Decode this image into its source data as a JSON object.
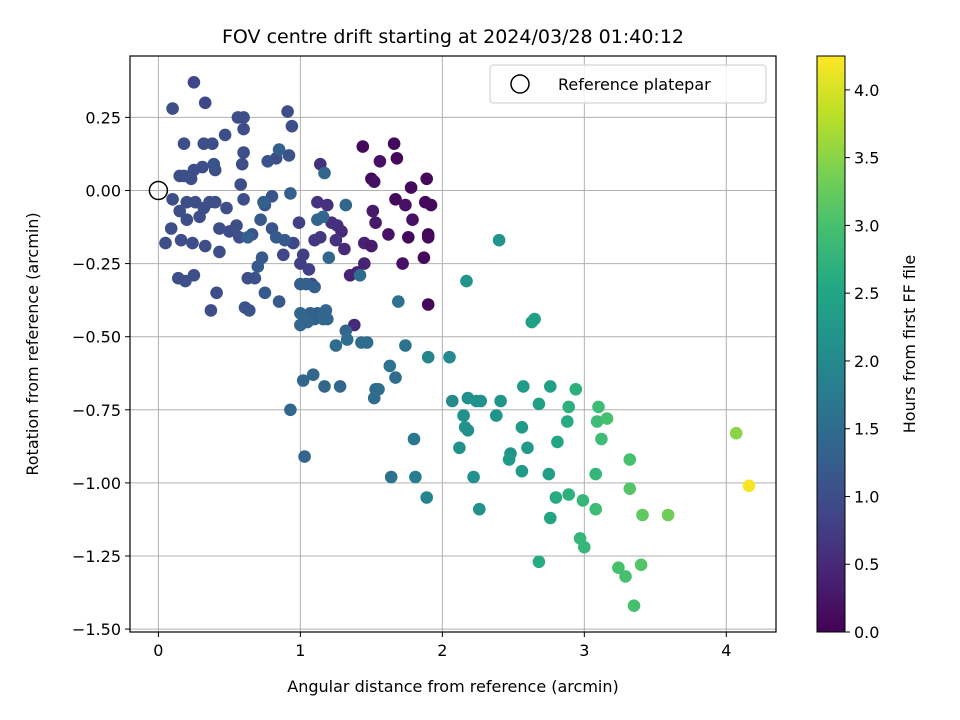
{
  "chart_data": {
    "type": "scatter",
    "title": "FOV centre drift starting at 2024/03/28 01:40:12",
    "xlabel": "Angular distance from reference (arcmin)",
    "ylabel": "Rotation from reference (arcmin)",
    "xlim": [
      -0.2,
      4.35
    ],
    "ylim": [
      -1.51,
      0.46
    ],
    "x_ticks": [
      0,
      1,
      2,
      3,
      4
    ],
    "x_tick_labels": [
      "0",
      "1",
      "2",
      "3",
      "4"
    ],
    "y_ticks": [
      0.25,
      0,
      -0.25,
      -0.5,
      -0.75,
      -1.0,
      -1.25,
      -1.5
    ],
    "y_tick_labels": [
      "0.25",
      "0.00",
      "−0.25",
      "−0.50",
      "−0.75",
      "−1.00",
      "−1.25",
      "−1.50"
    ],
    "grid": true,
    "legend": {
      "placement": "top-right",
      "label": "Reference platepar"
    },
    "reference_point": {
      "x": 0,
      "y": 0
    },
    "colorbar": {
      "label": "Hours from first FF file",
      "range": [
        0,
        4.25
      ],
      "ticks": [
        0,
        0.5,
        1,
        1.5,
        2,
        2.5,
        3,
        3.5,
        4
      ],
      "tick_labels": [
        "0.0",
        "0.5",
        "1.0",
        "1.5",
        "2.0",
        "2.5",
        "3.0",
        "3.5",
        "4.0"
      ],
      "colormap": "viridis"
    },
    "points": [
      {
        "x": 1.44,
        "y": 0.15,
        "t": 0.1
      },
      {
        "x": 1.66,
        "y": 0.16,
        "t": 0.1
      },
      {
        "x": 1.68,
        "y": 0.11,
        "t": 0.1
      },
      {
        "x": 1.56,
        "y": 0.1,
        "t": 0.2
      },
      {
        "x": 1.5,
        "y": 0.04,
        "t": 0.1
      },
      {
        "x": 1.52,
        "y": 0.03,
        "t": 0.2
      },
      {
        "x": 1.78,
        "y": 0.01,
        "t": 0.1
      },
      {
        "x": 1.89,
        "y": 0.04,
        "t": 0.1
      },
      {
        "x": 1.67,
        "y": -0.03,
        "t": 0.1
      },
      {
        "x": 1.74,
        "y": -0.05,
        "t": 0.2
      },
      {
        "x": 1.88,
        "y": -0.04,
        "t": 0.1
      },
      {
        "x": 1.92,
        "y": -0.05,
        "t": 0.1
      },
      {
        "x": 1.79,
        "y": -0.1,
        "t": 0.2
      },
      {
        "x": 1.62,
        "y": -0.15,
        "t": 0.2
      },
      {
        "x": 1.76,
        "y": -0.16,
        "t": 0.1
      },
      {
        "x": 1.9,
        "y": -0.15,
        "t": 0.1
      },
      {
        "x": 1.9,
        "y": -0.16,
        "t": 0.1
      },
      {
        "x": 1.53,
        "y": -0.11,
        "t": 0.3
      },
      {
        "x": 1.51,
        "y": -0.07,
        "t": 0.3
      },
      {
        "x": 1.45,
        "y": -0.18,
        "t": 0.4
      },
      {
        "x": 1.5,
        "y": -0.19,
        "t": 0.3
      },
      {
        "x": 1.72,
        "y": -0.25,
        "t": 0.2
      },
      {
        "x": 1.87,
        "y": -0.23,
        "t": 0.1
      },
      {
        "x": 1.9,
        "y": -0.39,
        "t": 0.1
      },
      {
        "x": 1.45,
        "y": -0.25,
        "t": 0.4
      },
      {
        "x": 1.35,
        "y": -0.29,
        "t": 0.4
      },
      {
        "x": 1.4,
        "y": -0.28,
        "t": 0.4
      },
      {
        "x": 1.26,
        "y": -0.12,
        "t": 0.6
      },
      {
        "x": 1.29,
        "y": -0.14,
        "t": 0.5
      },
      {
        "x": 1.25,
        "y": -0.17,
        "t": 0.6
      },
      {
        "x": 1.31,
        "y": -0.2,
        "t": 0.5
      },
      {
        "x": 1.14,
        "y": -0.16,
        "t": 0.7
      },
      {
        "x": 1.1,
        "y": -0.17,
        "t": 0.7
      },
      {
        "x": 1.12,
        "y": -0.04,
        "t": 0.6
      },
      {
        "x": 1.14,
        "y": 0.09,
        "t": 0.6
      },
      {
        "x": 1.19,
        "y": -0.05,
        "t": 0.6
      },
      {
        "x": 1.22,
        "y": -0.11,
        "t": 0.6
      },
      {
        "x": 1.02,
        "y": -0.22,
        "t": 0.8
      },
      {
        "x": 1.0,
        "y": -0.25,
        "t": 0.8
      },
      {
        "x": 1.06,
        "y": -0.27,
        "t": 0.8
      },
      {
        "x": 1.08,
        "y": -0.32,
        "t": 0.9
      },
      {
        "x": 0.99,
        "y": -0.11,
        "t": 0.8
      },
      {
        "x": 0.95,
        "y": -0.18,
        "t": 0.9
      },
      {
        "x": 0.88,
        "y": -0.22,
        "t": 0.9
      },
      {
        "x": 1.38,
        "y": -0.46,
        "t": 0.5
      },
      {
        "x": 0.91,
        "y": 0.27,
        "t": 1.0
      },
      {
        "x": 0.94,
        "y": 0.22,
        "t": 1.0
      },
      {
        "x": 0.92,
        "y": 0.12,
        "t": 1.1
      },
      {
        "x": 0.83,
        "y": 0.11,
        "t": 1.0
      },
      {
        "x": 0.77,
        "y": 0.1,
        "t": 1.1
      },
      {
        "x": 0.8,
        "y": -0.02,
        "t": 1.1
      },
      {
        "x": 0.75,
        "y": -0.05,
        "t": 1.1
      },
      {
        "x": 0.8,
        "y": -0.13,
        "t": 1.1
      },
      {
        "x": 0.72,
        "y": -0.1,
        "t": 1.2
      },
      {
        "x": 0.59,
        "y": 0.09,
        "t": 1.0
      },
      {
        "x": 0.6,
        "y": 0.13,
        "t": 1.0
      },
      {
        "x": 0.6,
        "y": 0.21,
        "t": 1.0
      },
      {
        "x": 0.56,
        "y": 0.25,
        "t": 1.0
      },
      {
        "x": 0.6,
        "y": 0.25,
        "t": 1.0
      },
      {
        "x": 0.47,
        "y": 0.19,
        "t": 1.0
      },
      {
        "x": 0.38,
        "y": 0.16,
        "t": 1.0
      },
      {
        "x": 0.4,
        "y": 0.07,
        "t": 1.0
      },
      {
        "x": 0.39,
        "y": 0.09,
        "t": 1.1
      },
      {
        "x": 0.32,
        "y": 0.16,
        "t": 1.0
      },
      {
        "x": 0.25,
        "y": 0.37,
        "t": 0.9
      },
      {
        "x": 0.33,
        "y": 0.3,
        "t": 0.9
      },
      {
        "x": 0.1,
        "y": 0.28,
        "t": 1.0
      },
      {
        "x": 0.18,
        "y": 0.16,
        "t": 1.0
      },
      {
        "x": 0.18,
        "y": 0.05,
        "t": 1.0
      },
      {
        "x": 0.15,
        "y": 0.05,
        "t": 1.0
      },
      {
        "x": 0.25,
        "y": 0.07,
        "t": 1.0
      },
      {
        "x": 0.23,
        "y": 0.04,
        "t": 1.0
      },
      {
        "x": 0.31,
        "y": 0.08,
        "t": 1.0
      },
      {
        "x": 0.2,
        "y": -0.04,
        "t": 1.0
      },
      {
        "x": 0.26,
        "y": -0.04,
        "t": 1.0
      },
      {
        "x": 0.32,
        "y": -0.06,
        "t": 1.0
      },
      {
        "x": 0.36,
        "y": -0.04,
        "t": 1.0
      },
      {
        "x": 0.29,
        "y": -0.09,
        "t": 1.0
      },
      {
        "x": 0.2,
        "y": -0.1,
        "t": 1.0
      },
      {
        "x": 0.15,
        "y": -0.07,
        "t": 1.0
      },
      {
        "x": 0.1,
        "y": -0.03,
        "t": 1.0
      },
      {
        "x": 0.09,
        "y": -0.13,
        "t": 1.0
      },
      {
        "x": 0.05,
        "y": -0.18,
        "t": 1.0
      },
      {
        "x": 0.16,
        "y": -0.17,
        "t": 1.0
      },
      {
        "x": 0.24,
        "y": -0.18,
        "t": 1.0
      },
      {
        "x": 0.33,
        "y": -0.19,
        "t": 1.0
      },
      {
        "x": 0.43,
        "y": -0.13,
        "t": 1.0
      },
      {
        "x": 0.4,
        "y": -0.04,
        "t": 1.0
      },
      {
        "x": 0.48,
        "y": -0.06,
        "t": 1.0
      },
      {
        "x": 0.55,
        "y": -0.12,
        "t": 1.0
      },
      {
        "x": 0.57,
        "y": -0.16,
        "t": 1.0
      },
      {
        "x": 0.5,
        "y": -0.14,
        "t": 1.0
      },
      {
        "x": 0.6,
        "y": -0.03,
        "t": 1.0
      },
      {
        "x": 0.58,
        "y": 0.02,
        "t": 1.0
      },
      {
        "x": 0.66,
        "y": -0.15,
        "t": 1.1
      },
      {
        "x": 0.43,
        "y": -0.21,
        "t": 1.0
      },
      {
        "x": 0.25,
        "y": -0.29,
        "t": 1.0
      },
      {
        "x": 0.14,
        "y": -0.3,
        "t": 1.0
      },
      {
        "x": 0.19,
        "y": -0.31,
        "t": 1.0
      },
      {
        "x": 0.41,
        "y": -0.35,
        "t": 1.0
      },
      {
        "x": 0.37,
        "y": -0.41,
        "t": 1.0
      },
      {
        "x": 0.61,
        "y": -0.4,
        "t": 1.1
      },
      {
        "x": 0.64,
        "y": -0.41,
        "t": 1.1
      },
      {
        "x": 0.68,
        "y": -0.3,
        "t": 1.1
      },
      {
        "x": 0.7,
        "y": -0.26,
        "t": 1.2
      },
      {
        "x": 0.73,
        "y": -0.23,
        "t": 1.2
      },
      {
        "x": 0.63,
        "y": -0.3,
        "t": 1.0
      },
      {
        "x": 0.75,
        "y": -0.35,
        "t": 1.2
      },
      {
        "x": 0.85,
        "y": -0.38,
        "t": 1.2
      },
      {
        "x": 0.83,
        "y": -0.16,
        "t": 1.2
      },
      {
        "x": 0.89,
        "y": -0.17,
        "t": 1.2
      },
      {
        "x": 0.93,
        "y": -0.01,
        "t": 1.3
      },
      {
        "x": 0.85,
        "y": 0.14,
        "t": 1.3
      },
      {
        "x": 0.74,
        "y": -0.04,
        "t": 1.3
      },
      {
        "x": 0.63,
        "y": -0.16,
        "t": 1.3
      },
      {
        "x": 1.0,
        "y": -0.32,
        "t": 1.3
      },
      {
        "x": 1.04,
        "y": -0.32,
        "t": 1.3
      },
      {
        "x": 1.1,
        "y": -0.33,
        "t": 1.3
      },
      {
        "x": 1.07,
        "y": -0.42,
        "t": 1.3
      },
      {
        "x": 1.1,
        "y": -0.44,
        "t": 1.3
      },
      {
        "x": 1.12,
        "y": -0.42,
        "t": 1.3
      },
      {
        "x": 1.0,
        "y": -0.42,
        "t": 1.4
      },
      {
        "x": 1.0,
        "y": -0.46,
        "t": 1.4
      },
      {
        "x": 1.05,
        "y": -0.45,
        "t": 1.4
      },
      {
        "x": 1.16,
        "y": -0.44,
        "t": 1.4
      },
      {
        "x": 1.18,
        "y": -0.41,
        "t": 1.4
      },
      {
        "x": 1.19,
        "y": -0.44,
        "t": 1.4
      },
      {
        "x": 1.12,
        "y": -0.1,
        "t": 1.4
      },
      {
        "x": 1.16,
        "y": -0.09,
        "t": 1.4
      },
      {
        "x": 1.17,
        "y": 0.06,
        "t": 1.4
      },
      {
        "x": 1.32,
        "y": -0.05,
        "t": 1.4
      },
      {
        "x": 1.2,
        "y": -0.23,
        "t": 1.4
      },
      {
        "x": 1.32,
        "y": -0.48,
        "t": 1.4
      },
      {
        "x": 1.33,
        "y": -0.51,
        "t": 1.5
      },
      {
        "x": 1.25,
        "y": -0.53,
        "t": 1.5
      },
      {
        "x": 1.43,
        "y": -0.52,
        "t": 1.5
      },
      {
        "x": 1.47,
        "y": -0.52,
        "t": 1.5
      },
      {
        "x": 1.42,
        "y": -0.29,
        "t": 1.5
      },
      {
        "x": 1.69,
        "y": -0.38,
        "t": 1.6
      },
      {
        "x": 1.74,
        "y": -0.53,
        "t": 1.6
      },
      {
        "x": 1.63,
        "y": -0.6,
        "t": 1.6
      },
      {
        "x": 1.53,
        "y": -0.68,
        "t": 1.5
      },
      {
        "x": 1.55,
        "y": -0.68,
        "t": 1.5
      },
      {
        "x": 1.52,
        "y": -0.71,
        "t": 1.5
      },
      {
        "x": 1.67,
        "y": -0.64,
        "t": 1.5
      },
      {
        "x": 1.02,
        "y": -0.65,
        "t": 1.4
      },
      {
        "x": 1.09,
        "y": -0.63,
        "t": 1.4
      },
      {
        "x": 1.17,
        "y": -0.67,
        "t": 1.4
      },
      {
        "x": 1.28,
        "y": -0.67,
        "t": 1.4
      },
      {
        "x": 0.93,
        "y": -0.75,
        "t": 1.4
      },
      {
        "x": 1.03,
        "y": -0.91,
        "t": 1.4
      },
      {
        "x": 1.64,
        "y": -0.98,
        "t": 1.6
      },
      {
        "x": 1.8,
        "y": -0.85,
        "t": 1.7
      },
      {
        "x": 1.81,
        "y": -0.98,
        "t": 1.8
      },
      {
        "x": 1.89,
        "y": -1.05,
        "t": 1.9
      },
      {
        "x": 1.9,
        "y": -0.57,
        "t": 1.9
      },
      {
        "x": 2.05,
        "y": -0.57,
        "t": 2.0
      },
      {
        "x": 2.07,
        "y": -0.72,
        "t": 2.0
      },
      {
        "x": 2.18,
        "y": -0.71,
        "t": 2.1
      },
      {
        "x": 2.24,
        "y": -0.72,
        "t": 2.2
      },
      {
        "x": 2.27,
        "y": -0.72,
        "t": 2.1
      },
      {
        "x": 2.15,
        "y": -0.77,
        "t": 2.1
      },
      {
        "x": 2.16,
        "y": -0.81,
        "t": 2.2
      },
      {
        "x": 2.18,
        "y": -0.82,
        "t": 2.1
      },
      {
        "x": 2.12,
        "y": -0.88,
        "t": 2.1
      },
      {
        "x": 2.22,
        "y": -0.98,
        "t": 2.1
      },
      {
        "x": 2.26,
        "y": -1.09,
        "t": 2.1
      },
      {
        "x": 2.38,
        "y": -0.77,
        "t": 2.2
      },
      {
        "x": 2.41,
        "y": -0.72,
        "t": 2.2
      },
      {
        "x": 2.48,
        "y": -0.9,
        "t": 2.2
      },
      {
        "x": 2.47,
        "y": -0.92,
        "t": 2.3
      },
      {
        "x": 2.56,
        "y": -0.81,
        "t": 2.3
      },
      {
        "x": 2.56,
        "y": -0.96,
        "t": 2.3
      },
      {
        "x": 2.6,
        "y": -0.88,
        "t": 2.3
      },
      {
        "x": 2.57,
        "y": -0.67,
        "t": 2.3
      },
      {
        "x": 2.68,
        "y": -0.73,
        "t": 2.4
      },
      {
        "x": 2.76,
        "y": -0.67,
        "t": 2.4
      },
      {
        "x": 2.75,
        "y": -0.97,
        "t": 2.4
      },
      {
        "x": 2.8,
        "y": -1.05,
        "t": 2.6
      },
      {
        "x": 2.81,
        "y": -0.86,
        "t": 2.5
      },
      {
        "x": 2.76,
        "y": -1.12,
        "t": 2.5
      },
      {
        "x": 2.68,
        "y": -1.27,
        "t": 2.6
      },
      {
        "x": 2.88,
        "y": -0.79,
        "t": 2.6
      },
      {
        "x": 2.89,
        "y": -0.74,
        "t": 2.7
      },
      {
        "x": 2.89,
        "y": -1.04,
        "t": 2.7
      },
      {
        "x": 2.94,
        "y": -0.68,
        "t": 2.7
      },
      {
        "x": 2.99,
        "y": -1.06,
        "t": 2.8
      },
      {
        "x": 2.97,
        "y": -1.19,
        "t": 2.8
      },
      {
        "x": 3.0,
        "y": -1.22,
        "t": 2.8
      },
      {
        "x": 3.08,
        "y": -0.97,
        "t": 2.8
      },
      {
        "x": 3.08,
        "y": -1.09,
        "t": 2.9
      },
      {
        "x": 3.09,
        "y": -0.79,
        "t": 2.9
      },
      {
        "x": 3.1,
        "y": -0.74,
        "t": 2.9
      },
      {
        "x": 3.12,
        "y": -0.85,
        "t": 2.9
      },
      {
        "x": 3.16,
        "y": -0.78,
        "t": 3.0
      },
      {
        "x": 3.24,
        "y": -1.29,
        "t": 3.0
      },
      {
        "x": 3.29,
        "y": -1.32,
        "t": 3.0
      },
      {
        "x": 3.32,
        "y": -0.92,
        "t": 3.0
      },
      {
        "x": 3.32,
        "y": -1.02,
        "t": 3.1
      },
      {
        "x": 3.35,
        "y": -1.42,
        "t": 3.0
      },
      {
        "x": 3.4,
        "y": -1.28,
        "t": 3.1
      },
      {
        "x": 3.41,
        "y": -1.11,
        "t": 3.2
      },
      {
        "x": 3.59,
        "y": -1.11,
        "t": 3.3
      },
      {
        "x": 4.07,
        "y": -0.83,
        "t": 3.5
      },
      {
        "x": 4.16,
        "y": -1.01,
        "t": 4.2
      },
      {
        "x": 2.4,
        "y": -0.17,
        "t": 2.2
      },
      {
        "x": 2.17,
        "y": -0.31,
        "t": 2.2
      },
      {
        "x": 2.63,
        "y": -0.45,
        "t": 2.4
      },
      {
        "x": 2.65,
        "y": -0.44,
        "t": 2.4
      }
    ]
  },
  "colors": {
    "axes": "#000000",
    "grid": "#b0b0b0",
    "legend_border": "#cccccc"
  }
}
